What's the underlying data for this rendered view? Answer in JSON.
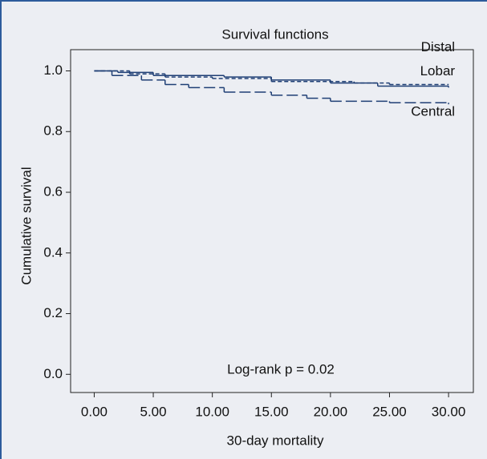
{
  "chart_data": {
    "type": "step",
    "title": "Survival functions",
    "x_label": "30-day mortality",
    "y_label": "Cumulative survival",
    "annotation": "Log-rank p = 0.02",
    "xlim": [
      -2,
      32.1
    ],
    "ylim": [
      -0.06,
      1.07
    ],
    "xticks": [
      {
        "value": 0,
        "label": "0.00"
      },
      {
        "value": 5,
        "label": "5.00"
      },
      {
        "value": 10,
        "label": "10.00"
      },
      {
        "value": 15,
        "label": "15.00"
      },
      {
        "value": 20,
        "label": "20.00"
      },
      {
        "value": 25,
        "label": "25.00"
      },
      {
        "value": 30,
        "label": "30.00"
      }
    ],
    "yticks": [
      {
        "value": 0,
        "label": "0.0"
      },
      {
        "value": 0.2,
        "label": "0.2"
      },
      {
        "value": 0.4,
        "label": "0.4"
      },
      {
        "value": 0.6,
        "label": "0.6"
      },
      {
        "value": 0.8,
        "label": "0.8"
      },
      {
        "value": 1,
        "label": "1.0"
      }
    ],
    "series": [
      {
        "name": "Distal",
        "color": "#1f3f75",
        "dash": "5,3",
        "x": [
          0,
          3,
          6,
          10,
          15,
          22,
          25,
          30
        ],
        "values": [
          1.0,
          0.99,
          0.98,
          0.975,
          0.965,
          0.96,
          0.955,
          0.955
        ]
      },
      {
        "name": "Lobar",
        "color": "#1f3f75",
        "dash": "none",
        "x": [
          0,
          2,
          5,
          11,
          15,
          20,
          24,
          30
        ],
        "values": [
          1.0,
          0.995,
          0.985,
          0.98,
          0.97,
          0.96,
          0.95,
          0.945
        ]
      },
      {
        "name": "Central",
        "color": "#1f3f75",
        "dash": "14,5",
        "x": [
          0,
          1.5,
          4,
          6,
          8,
          11,
          15,
          18,
          20,
          25,
          30
        ],
        "values": [
          1.0,
          0.985,
          0.97,
          0.955,
          0.945,
          0.93,
          0.92,
          0.91,
          0.9,
          0.895,
          0.89
        ]
      }
    ]
  }
}
